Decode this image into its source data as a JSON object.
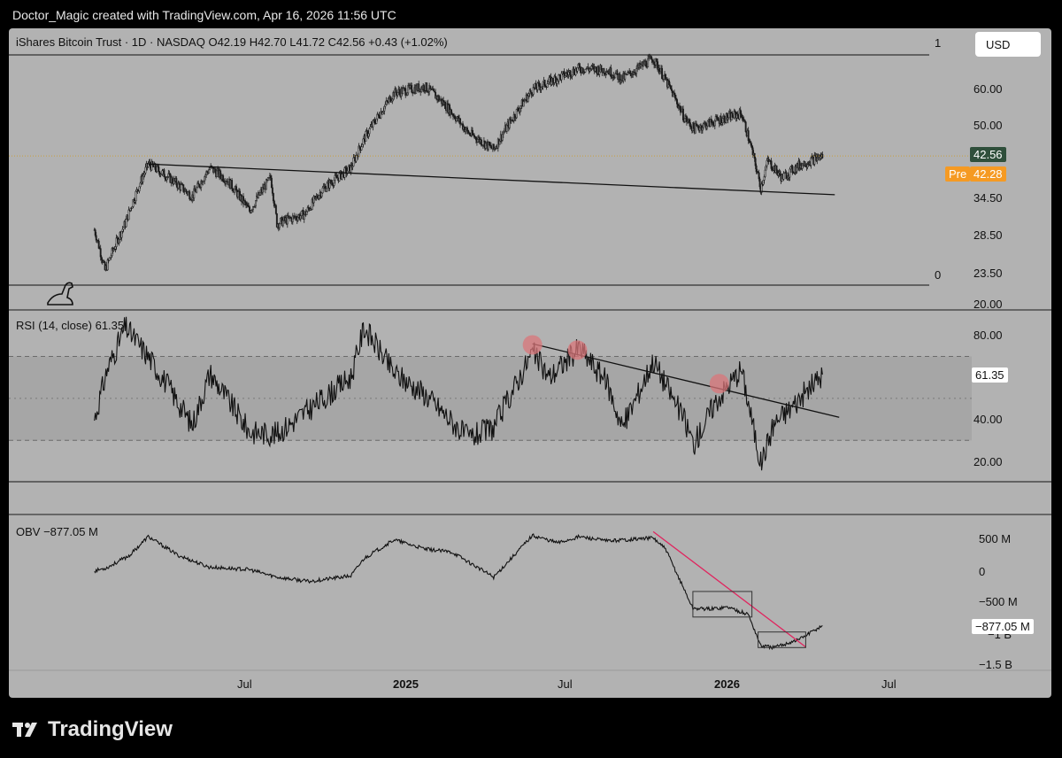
{
  "header": {
    "attribution": "Doctor_Magic created with TradingView.com, Apr 16, 2026 11:56 UTC"
  },
  "price_pane": {
    "legend": "iShares Bitcoin Trust · 1D · NASDAQ  O42.19  H42.70  L41.72  C42.56  +0.43 (+1.02%)",
    "currency_button": "USD",
    "scale_marker_top": "1",
    "scale_marker_bottom": "0",
    "last_price": "42.56",
    "pre_label": "Pre",
    "pre_price": "42.28",
    "y_ticks": [
      "60.00",
      "50.00",
      "34.50",
      "28.50",
      "23.50",
      "20.00"
    ]
  },
  "rsi_pane": {
    "legend": "RSI (14, close)  61.35",
    "value": "61.35",
    "y_ticks": [
      "80.00",
      "40.00",
      "20.00"
    ]
  },
  "obv_pane": {
    "legend": "OBV  −877.05 M",
    "value": "−877.05 M",
    "y_ticks": [
      "500 M",
      "0",
      "−500 M",
      "−1 B",
      "−1.5 B"
    ]
  },
  "x_axis": {
    "ticks": [
      "Jul",
      "2025",
      "Jul",
      "2026",
      "Jul"
    ]
  },
  "footer": {
    "brand": "TradingView"
  },
  "colors": {
    "pane_bg": "#b2b2b2",
    "line": "#111111",
    "price_tag": "#2f4f3b",
    "pre_tag": "#f59a23",
    "obv_trend": "#e0245e",
    "rsi_marker": "#d9767a"
  },
  "chart_data": [
    {
      "type": "candlestick",
      "title": "iShares Bitcoin Trust · 1D · NASDAQ",
      "ylim": [
        20,
        75
      ],
      "y_scale": "log",
      "y_ticks": [
        "60.00",
        "50.00",
        "34.50",
        "28.50",
        "23.50",
        "20.00"
      ],
      "x_ticks": [
        "Jul",
        "2025",
        "Jul",
        "2026",
        "Jul"
      ],
      "series": [
        {
          "name": "close",
          "x": [
            "2024-01-11",
            "2024-01-23",
            "2024-02-15",
            "2024-03-12",
            "2024-04-01",
            "2024-05-01",
            "2024-05-21",
            "2024-06-10",
            "2024-07-05",
            "2024-07-29",
            "2024-08-05",
            "2024-09-06",
            "2024-09-27",
            "2024-10-28",
            "2024-11-12",
            "2024-12-16",
            "2025-01-20",
            "2025-02-10",
            "2025-03-10",
            "2025-04-08",
            "2025-05-22",
            "2025-07-14",
            "2025-08-14",
            "2025-09-01",
            "2025-10-06",
            "2025-10-20",
            "2025-11-10",
            "2025-11-21",
            "2025-12-15",
            "2026-01-14",
            "2026-02-05",
            "2026-02-13",
            "2026-03-01",
            "2026-03-20",
            "2026-04-16"
          ],
          "values": [
            29.0,
            23.5,
            30.0,
            40.8,
            38.5,
            34.5,
            40.0,
            37.5,
            32.0,
            38.0,
            30.0,
            31.5,
            36.0,
            40.0,
            46.5,
            59.0,
            61.0,
            56.0,
            48.0,
            44.0,
            60.0,
            67.0,
            66.5,
            63.5,
            70.5,
            63.0,
            52.0,
            49.0,
            51.0,
            53.0,
            36.0,
            41.5,
            38.0,
            40.5,
            42.56
          ]
        }
      ],
      "trendline": {
        "from": [
          "2024-03-12",
          40.8
        ],
        "to": [
          "2026-04-30",
          34.8
        ]
      },
      "last": 42.56,
      "pre": 42.28
    },
    {
      "type": "line",
      "title": "RSI (14, close)",
      "ylim": [
        10,
        90
      ],
      "bands": [
        30,
        70
      ],
      "y_ticks": [
        "80.00",
        "40.00",
        "20.00"
      ],
      "series": [
        {
          "name": "RSI",
          "x": [
            "2024-01-11",
            "2024-01-25",
            "2024-02-15",
            "2024-03-12",
            "2024-04-05",
            "2024-05-01",
            "2024-05-21",
            "2024-07-05",
            "2024-08-05",
            "2024-10-28",
            "2024-11-12",
            "2024-12-16",
            "2025-01-20",
            "2025-03-10",
            "2025-04-08",
            "2025-05-22",
            "2025-06-10",
            "2025-07-14",
            "2025-08-14",
            "2025-09-01",
            "2025-10-06",
            "2025-11-10",
            "2025-11-21",
            "2025-12-15",
            "2026-01-14",
            "2026-02-05",
            "2026-02-20",
            "2026-03-10",
            "2026-04-16"
          ],
          "values": [
            40,
            63,
            84,
            70,
            55,
            37,
            62,
            34,
            33,
            60,
            84,
            62,
            52,
            31,
            36,
            72,
            60,
            74,
            58,
            36,
            68,
            40,
            28,
            48,
            64,
            19,
            38,
            45,
            61.35
          ]
        }
      ],
      "trendline": {
        "from": [
          "2025-05-22",
          76
        ],
        "to": [
          "2026-05-05",
          41
        ]
      },
      "markers": [
        [
          "2025-05-22",
          75.5
        ],
        [
          "2025-07-12",
          73
        ],
        [
          "2025-12-20",
          57
        ]
      ],
      "last": 61.35
    },
    {
      "type": "line",
      "title": "OBV",
      "ylim": [
        -1700,
        700
      ],
      "y_ticks": [
        "500 M",
        "0",
        "−500 M",
        "−1 B",
        "−1.5 B"
      ],
      "series": [
        {
          "name": "OBV",
          "x": [
            "2024-01-11",
            "2024-01-25",
            "2024-02-20",
            "2024-03-12",
            "2024-04-15",
            "2024-05-20",
            "2024-07-05",
            "2024-08-05",
            "2024-09-10",
            "2024-10-28",
            "2024-11-12",
            "2024-12-16",
            "2025-01-20",
            "2025-02-20",
            "2025-04-08",
            "2025-05-22",
            "2025-06-20",
            "2025-07-14",
            "2025-08-14",
            "2025-10-06",
            "2025-10-20",
            "2025-11-20",
            "2025-12-10",
            "2025-12-30",
            "2026-01-22",
            "2026-02-05",
            "2026-02-20",
            "2026-03-20",
            "2026-04-16"
          ],
          "values": [
            0,
            50,
            250,
            550,
            250,
            60,
            20,
            -100,
            -170,
            -80,
            200,
            500,
            350,
            300,
            -100,
            570,
            450,
            550,
            480,
            530,
            350,
            -600,
            -610,
            -580,
            -700,
            -1200,
            -1230,
            -1100,
            -877.05
          ]
        }
      ],
      "trendline": {
        "from": [
          "2025-10-06",
          630
        ],
        "to": [
          "2026-03-28",
          -1220
        ]
      },
      "boxes": [
        [
          [
            "2025-11-20",
            -330
          ],
          [
            "2026-01-26",
            -740
          ]
        ],
        [
          [
            "2026-02-02",
            -980
          ],
          [
            "2026-03-28",
            -1230
          ]
        ]
      ],
      "last": -877.05
    }
  ]
}
